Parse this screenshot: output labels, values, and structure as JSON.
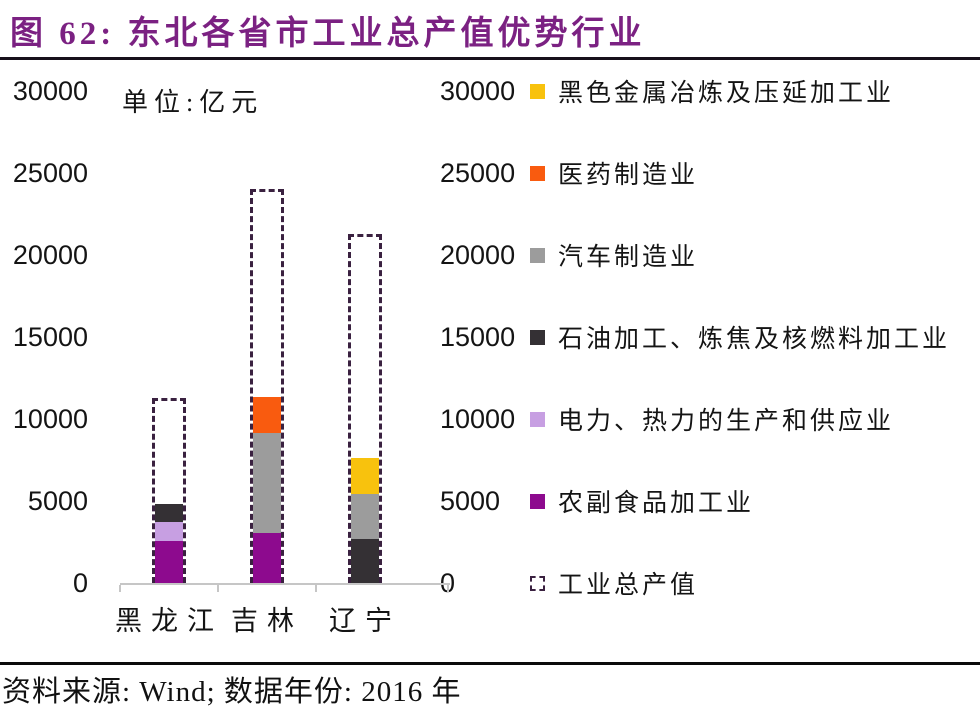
{
  "header": {
    "title": "图 62: 东北各省市工业总产值优势行业",
    "accent_color": "#7B2182"
  },
  "chart_data": {
    "type": "bar",
    "subtype": "stacked-bars-with-dashed-total-outline",
    "title": "东北各省市工业总产值优势行业",
    "unit_label": "单位:亿元",
    "xlabel": "",
    "ylabel": "亿元",
    "ylim": [
      0,
      30000
    ],
    "yticks": [
      0,
      5000,
      10000,
      15000,
      20000,
      25000,
      30000
    ],
    "grid": false,
    "legend_position": "right",
    "categories": [
      "黑龙江",
      "吉林",
      "辽宁"
    ],
    "bars": [
      {
        "category": "黑龙江",
        "total_outline_label": "工业总产值",
        "total_outline_value": 11300,
        "segments": [
          {
            "industry": "农副食品加工业",
            "color_key": "purple",
            "value": 2550
          },
          {
            "industry": "电力、热力的生产和供应业",
            "color_key": "light_purple",
            "value": 1150
          },
          {
            "industry": "石油加工、炼焦及核燃料加工业",
            "color_key": "dark",
            "value": 1100
          }
        ]
      },
      {
        "category": "吉林",
        "total_outline_label": "工业总产值",
        "total_outline_value": 24000,
        "segments": [
          {
            "industry": "农副食品加工业",
            "color_key": "purple",
            "value": 3050
          },
          {
            "industry": "汽车制造业",
            "color_key": "gray",
            "value": 6100
          },
          {
            "industry": "医药制造业",
            "color_key": "orange",
            "value": 2200
          }
        ]
      },
      {
        "category": "辽宁",
        "total_outline_label": "工业总产值",
        "total_outline_value": 21300,
        "segments": [
          {
            "industry": "石油加工、炼焦及核燃料加工业",
            "color_key": "dark",
            "value": 2700
          },
          {
            "industry": "汽车制造业",
            "color_key": "gray",
            "value": 2700
          },
          {
            "industry": "黑色金属冶炼及压延加工业",
            "color_key": "yellow",
            "value": 2200
          }
        ]
      }
    ],
    "legend": [
      {
        "label": "黑色金属冶炼及压延加工业",
        "color_key": "yellow",
        "swatch": "solid"
      },
      {
        "label": "医药制造业",
        "color_key": "orange",
        "swatch": "solid"
      },
      {
        "label": "汽车制造业",
        "color_key": "gray",
        "swatch": "solid"
      },
      {
        "label": "石油加工、炼焦及核燃料加工业",
        "color_key": "dark",
        "swatch": "solid"
      },
      {
        "label": "电力、热力的生产和供应业",
        "color_key": "light_purple",
        "swatch": "solid"
      },
      {
        "label": "农副食品加工业",
        "color_key": "purple",
        "swatch": "solid"
      },
      {
        "label": "工业总产值",
        "color_key": "outline",
        "swatch": "dashed"
      }
    ],
    "colors": {
      "yellow": "#F8C20D",
      "orange": "#F95B0F",
      "gray": "#9C9C9C",
      "dark": "#343034",
      "light_purple": "#C79FE2",
      "purple": "#8D0A8E",
      "outline": "#3A2140"
    }
  },
  "footer": {
    "source_text": "资料来源: Wind; 数据年份: 2016 年"
  }
}
